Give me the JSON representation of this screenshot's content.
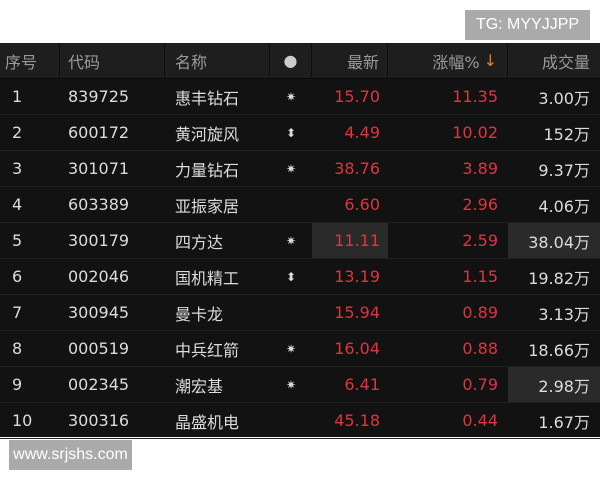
{
  "watermarks": {
    "top": "TG: MYYJJPP",
    "bottom": "www.srjshs.com"
  },
  "colors": {
    "up": "#e0343f",
    "sort_arrow": "#e87b2a",
    "background": "#121212"
  },
  "header": {
    "index": "序号",
    "code": "代码",
    "name": "名称",
    "dot": "●",
    "latest": "最新",
    "change_pct": "涨幅%",
    "sort_icon": "↓",
    "volume": "成交量"
  },
  "rows": [
    {
      "index": "1",
      "code": "839725",
      "name": "惠丰钻石",
      "icon": "✷",
      "latest": "15.70",
      "change": "11.35",
      "volume": "3.00万"
    },
    {
      "index": "2",
      "code": "600172",
      "name": "黄河旋风",
      "icon": "⬍",
      "latest": "4.49",
      "change": "10.02",
      "volume": "152万"
    },
    {
      "index": "3",
      "code": "301071",
      "name": "力量钻石",
      "icon": "✷",
      "latest": "38.76",
      "change": "3.89",
      "volume": "9.37万"
    },
    {
      "index": "4",
      "code": "603389",
      "name": "亚振家居",
      "icon": "",
      "latest": "6.60",
      "change": "2.96",
      "volume": "4.06万"
    },
    {
      "index": "5",
      "code": "300179",
      "name": "四方达",
      "icon": "✷",
      "latest": "11.11",
      "change": "2.59",
      "volume": "38.04万",
      "hl_latest": true,
      "hl_volume": true
    },
    {
      "index": "6",
      "code": "002046",
      "name": "国机精工",
      "icon": "⬍",
      "latest": "13.19",
      "change": "1.15",
      "volume": "19.82万"
    },
    {
      "index": "7",
      "code": "300945",
      "name": "曼卡龙",
      "icon": "",
      "latest": "15.94",
      "change": "0.89",
      "volume": "3.13万"
    },
    {
      "index": "8",
      "code": "000519",
      "name": "中兵红箭",
      "icon": "✷",
      "latest": "16.04",
      "change": "0.88",
      "volume": "18.66万"
    },
    {
      "index": "9",
      "code": "002345",
      "name": "潮宏基",
      "icon": "✷",
      "latest": "6.41",
      "change": "0.79",
      "volume": "2.98万",
      "hl_volume": true
    },
    {
      "index": "10",
      "code": "300316",
      "name": "晶盛机电",
      "icon": "",
      "latest": "45.18",
      "change": "0.44",
      "volume": "1.67万"
    }
  ]
}
